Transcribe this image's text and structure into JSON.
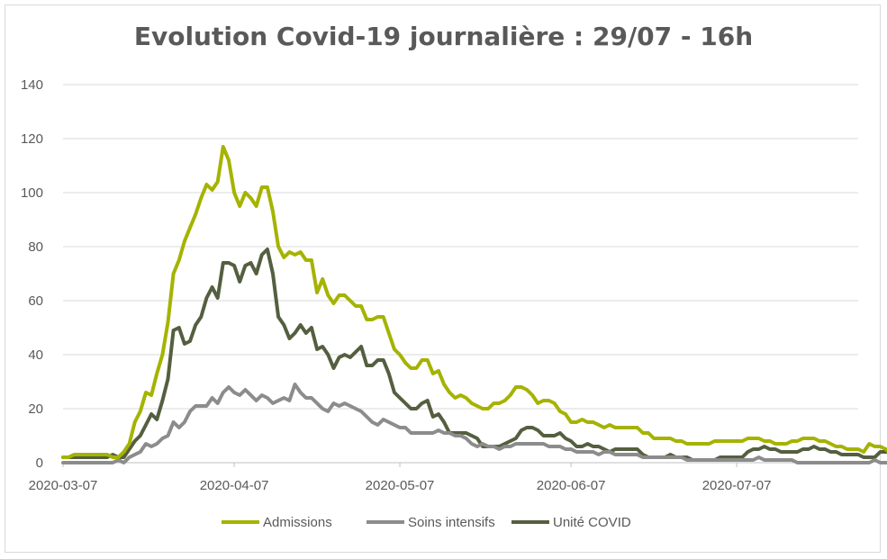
{
  "chart_data": {
    "type": "line",
    "title": "Evolution Covid-19 journalière : 29/07 - 16h",
    "xlabel": "",
    "ylabel": "",
    "ylim": [
      0,
      140
    ],
    "yticks": [
      0,
      20,
      40,
      60,
      80,
      100,
      120,
      140
    ],
    "x_start": "2020-03-07",
    "x_end": "2020-07-29",
    "xticks": [
      "2020-03-07",
      "2020-04-07",
      "2020-05-07",
      "2020-06-07",
      "2020-07-07"
    ],
    "grid": true,
    "legend_position": "bottom",
    "series": [
      {
        "name": "Admissions",
        "color": "#a5b300",
        "values": [
          2,
          2,
          3,
          3,
          3,
          3,
          3,
          3,
          3,
          2,
          2,
          4,
          7,
          15,
          19,
          26,
          25,
          33,
          40,
          52,
          70,
          75,
          82,
          87,
          92,
          98,
          103,
          101,
          104,
          117,
          112,
          100,
          95,
          100,
          98,
          95,
          102,
          102,
          93,
          80,
          76,
          78,
          77,
          78,
          75,
          75,
          63,
          68,
          62,
          59,
          62,
          62,
          60,
          58,
          58,
          53,
          53,
          54,
          54,
          48,
          42,
          40,
          37,
          35,
          35,
          38,
          38,
          33,
          34,
          29,
          26,
          24,
          25,
          24,
          22,
          21,
          20,
          20,
          22,
          22,
          23,
          25,
          28,
          28,
          27,
          25,
          22,
          23,
          23,
          22,
          19,
          18,
          15,
          15,
          16,
          15,
          15,
          14,
          13,
          14,
          13,
          13,
          13,
          13,
          13,
          11,
          11,
          9,
          9,
          9,
          9,
          8,
          8,
          7,
          7,
          7,
          7,
          7,
          8,
          8,
          8,
          8,
          8,
          8,
          9,
          9,
          9,
          8,
          8,
          7,
          7,
          7,
          8,
          8,
          9,
          9,
          9,
          8,
          8,
          7,
          6,
          6,
          5,
          5,
          5,
          4,
          7,
          6,
          6,
          5,
          3,
          5,
          6,
          7
        ]
      },
      {
        "name": "Soins intensifs",
        "color": "#8c8c8c",
        "values": [
          0,
          0,
          0,
          0,
          0,
          0,
          0,
          0,
          0,
          0,
          1,
          0,
          2,
          3,
          4,
          7,
          6,
          7,
          9,
          10,
          15,
          13,
          15,
          19,
          21,
          21,
          21,
          24,
          22,
          26,
          28,
          26,
          25,
          27,
          25,
          23,
          25,
          24,
          22,
          23,
          24,
          23,
          29,
          26,
          24,
          24,
          22,
          20,
          19,
          22,
          21,
          22,
          21,
          20,
          19,
          17,
          15,
          14,
          16,
          15,
          14,
          13,
          13,
          11,
          11,
          11,
          11,
          11,
          12,
          11,
          11,
          10,
          10,
          9,
          7,
          6,
          7,
          6,
          6,
          5,
          6,
          6,
          7,
          7,
          7,
          7,
          7,
          7,
          6,
          6,
          6,
          5,
          5,
          4,
          4,
          4,
          4,
          3,
          4,
          4,
          3,
          3,
          3,
          3,
          3,
          2,
          2,
          2,
          2,
          2,
          2,
          2,
          2,
          1,
          1,
          1,
          1,
          1,
          1,
          1,
          1,
          1,
          1,
          1,
          1,
          1,
          2,
          1,
          1,
          1,
          1,
          1,
          1,
          0,
          0,
          0,
          0,
          0,
          0,
          0,
          0,
          0,
          0,
          0,
          0,
          0,
          0,
          1,
          0,
          0,
          0,
          0,
          0,
          0,
          0
        ]
      },
      {
        "name": "Unité COVID",
        "color": "#545f40",
        "values": [
          2,
          2,
          2,
          2,
          2,
          2,
          2,
          2,
          2,
          3,
          2,
          2,
          5,
          8,
          10,
          14,
          18,
          16,
          23,
          31,
          49,
          50,
          44,
          45,
          51,
          54,
          61,
          65,
          61,
          74,
          74,
          73,
          67,
          73,
          74,
          70,
          77,
          79,
          70,
          54,
          51,
          46,
          48,
          51,
          48,
          50,
          42,
          43,
          40,
          35,
          39,
          40,
          39,
          41,
          43,
          36,
          36,
          38,
          38,
          33,
          26,
          24,
          22,
          20,
          20,
          22,
          23,
          17,
          18,
          15,
          11,
          11,
          11,
          11,
          10,
          9,
          6,
          6,
          6,
          6,
          7,
          8,
          9,
          12,
          13,
          13,
          12,
          10,
          10,
          10,
          11,
          9,
          8,
          6,
          6,
          7,
          6,
          6,
          5,
          4,
          5,
          5,
          5,
          5,
          5,
          3,
          2,
          2,
          2,
          2,
          3,
          2,
          2,
          2,
          1,
          1,
          1,
          1,
          1,
          2,
          2,
          2,
          2,
          2,
          4,
          5,
          5,
          6,
          5,
          5,
          4,
          4,
          4,
          4,
          5,
          5,
          6,
          5,
          5,
          4,
          4,
          3,
          3,
          3,
          3,
          2,
          2,
          2,
          4,
          4,
          4,
          2,
          3,
          4,
          4
        ]
      }
    ]
  }
}
